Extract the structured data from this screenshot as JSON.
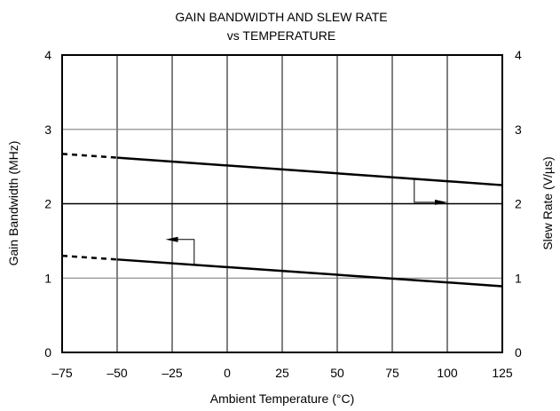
{
  "chart_data": {
    "type": "line",
    "title": "GAIN BANDWIDTH AND SLEW RATE",
    "subtitle": "vs TEMPERATURE",
    "xlabel": "Ambient Temperature (°C)",
    "ylabel_left": "Gain Bandwidth (MHz)",
    "ylabel_right": "Slew Rate (V/µs)",
    "xlim": [
      -75,
      125
    ],
    "ylim": [
      0,
      4
    ],
    "x_ticks": [
      "–75",
      "–50",
      "–25",
      "0",
      "25",
      "50",
      "75",
      "100",
      "125"
    ],
    "x_tick_values": [
      -75,
      -50,
      -25,
      0,
      25,
      50,
      75,
      100,
      125
    ],
    "y_ticks": [
      "0",
      "1",
      "2",
      "3",
      "4"
    ],
    "y_tick_values": [
      0,
      1,
      2,
      3,
      4
    ],
    "grid": true,
    "series": [
      {
        "axis": "right",
        "extrapolated_x": [
          -75,
          -50
        ],
        "extrapolated_y": [
          2.67,
          2.62
        ],
        "x": [
          -50,
          125
        ],
        "y": [
          2.62,
          2.25
        ]
      },
      {
        "axis": "left",
        "extrapolated_x": [
          -75,
          -50
        ],
        "extrapolated_y": [
          1.3,
          1.25
        ],
        "x": [
          -50,
          125
        ],
        "y": [
          1.25,
          0.89
        ]
      }
    ],
    "annotations": [
      {
        "type": "arrow",
        "direction": "right",
        "points_to": "right-axis"
      },
      {
        "type": "arrow",
        "direction": "left",
        "points_to": "left-axis"
      }
    ]
  }
}
